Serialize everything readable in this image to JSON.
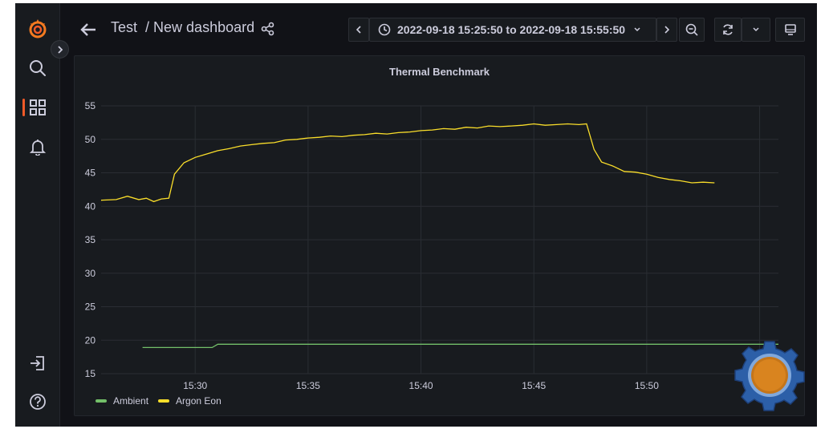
{
  "app": {
    "breadcrumb": {
      "folder": "Test",
      "separator": "/",
      "title": "New dashboard"
    },
    "time_range": "2022-09-18 15:25:50 to 2022-09-18 15:55:50",
    "icons": {
      "logo": "grafana-logo-icon",
      "search": "search-icon",
      "dashboards": "dashboards-grid-icon",
      "alerts": "bell-icon",
      "sign_in": "sign-in-icon",
      "help": "help-icon",
      "back": "arrow-left-icon",
      "share": "share-icon",
      "time_prev": "chevron-left-icon",
      "time_next": "chevron-right-icon",
      "clock": "clock-icon",
      "zoom_out": "zoom-out-icon",
      "refresh": "refresh-icon",
      "refresh_dropdown": "chevron-down-icon",
      "tv_mode": "monitor-icon",
      "expand_menu": "chevron-right-icon"
    },
    "colors": {
      "background": "#111217",
      "panel": "#181b1f",
      "accent": "#f05a28",
      "ambient": "#73bf69",
      "argon": "#fade2a"
    }
  },
  "panel": {
    "title": "Thermal Benchmark",
    "legend": [
      {
        "label": "Ambient",
        "color": "#73bf69"
      },
      {
        "label": "Argon Eon",
        "color": "#fade2a"
      }
    ]
  },
  "chart_data": {
    "type": "line",
    "title": "Thermal Benchmark",
    "x_unit": "time (HH:MM on 2022-09-18)",
    "xlim": [
      "15:25:50",
      "15:55:50"
    ],
    "ylim": [
      15,
      55
    ],
    "y_ticks": [
      15,
      20,
      25,
      30,
      35,
      40,
      45,
      50,
      55
    ],
    "x_ticks": [
      "15:30",
      "15:35",
      "15:40",
      "15:45",
      "15:50",
      "15:55"
    ],
    "grid": true,
    "legend_position": "bottom-left",
    "series": [
      {
        "name": "Ambient",
        "color": "#73bf69",
        "points": [
          [
            "15:27:40",
            18.9
          ],
          [
            "15:30:45",
            18.9
          ],
          [
            "15:31:00",
            19.4
          ],
          [
            "15:55:50",
            19.4
          ]
        ]
      },
      {
        "name": "Argon Eon",
        "color": "#fade2a",
        "points": [
          [
            "15:25:50",
            40.9
          ],
          [
            "15:26:30",
            41.0
          ],
          [
            "15:27:00",
            41.5
          ],
          [
            "15:27:30",
            41.0
          ],
          [
            "15:27:50",
            41.2
          ],
          [
            "15:28:10",
            40.7
          ],
          [
            "15:28:30",
            41.1
          ],
          [
            "15:28:50",
            41.2
          ],
          [
            "15:29:05",
            44.8
          ],
          [
            "15:29:30",
            46.5
          ],
          [
            "15:30:00",
            47.3
          ],
          [
            "15:30:30",
            47.8
          ],
          [
            "15:31:00",
            48.3
          ],
          [
            "15:31:30",
            48.6
          ],
          [
            "15:32:00",
            49.0
          ],
          [
            "15:32:30",
            49.2
          ],
          [
            "15:33:00",
            49.4
          ],
          [
            "15:33:30",
            49.5
          ],
          [
            "15:34:00",
            49.9
          ],
          [
            "15:34:30",
            50.0
          ],
          [
            "15:35:00",
            50.2
          ],
          [
            "15:35:30",
            50.3
          ],
          [
            "15:36:00",
            50.5
          ],
          [
            "15:36:30",
            50.4
          ],
          [
            "15:37:00",
            50.6
          ],
          [
            "15:37:30",
            50.7
          ],
          [
            "15:38:00",
            50.9
          ],
          [
            "15:38:30",
            50.8
          ],
          [
            "15:39:00",
            51.0
          ],
          [
            "15:39:30",
            51.1
          ],
          [
            "15:40:00",
            51.3
          ],
          [
            "15:40:30",
            51.4
          ],
          [
            "15:41:00",
            51.6
          ],
          [
            "15:41:30",
            51.5
          ],
          [
            "15:42:00",
            51.8
          ],
          [
            "15:42:30",
            51.7
          ],
          [
            "15:43:00",
            52.0
          ],
          [
            "15:43:30",
            51.9
          ],
          [
            "15:44:00",
            52.0
          ],
          [
            "15:44:30",
            52.1
          ],
          [
            "15:45:00",
            52.3
          ],
          [
            "15:45:30",
            52.1
          ],
          [
            "15:46:00",
            52.2
          ],
          [
            "15:46:30",
            52.3
          ],
          [
            "15:47:00",
            52.2
          ],
          [
            "15:47:20",
            52.3
          ],
          [
            "15:47:40",
            48.5
          ],
          [
            "15:48:00",
            46.6
          ],
          [
            "15:48:30",
            46.0
          ],
          [
            "15:49:00",
            45.2
          ],
          [
            "15:49:30",
            45.1
          ],
          [
            "15:50:00",
            44.8
          ],
          [
            "15:50:30",
            44.3
          ],
          [
            "15:51:00",
            44.0
          ],
          [
            "15:51:30",
            43.8
          ],
          [
            "15:52:00",
            43.5
          ],
          [
            "15:52:30",
            43.6
          ],
          [
            "15:53:00",
            43.5
          ]
        ]
      }
    ]
  }
}
